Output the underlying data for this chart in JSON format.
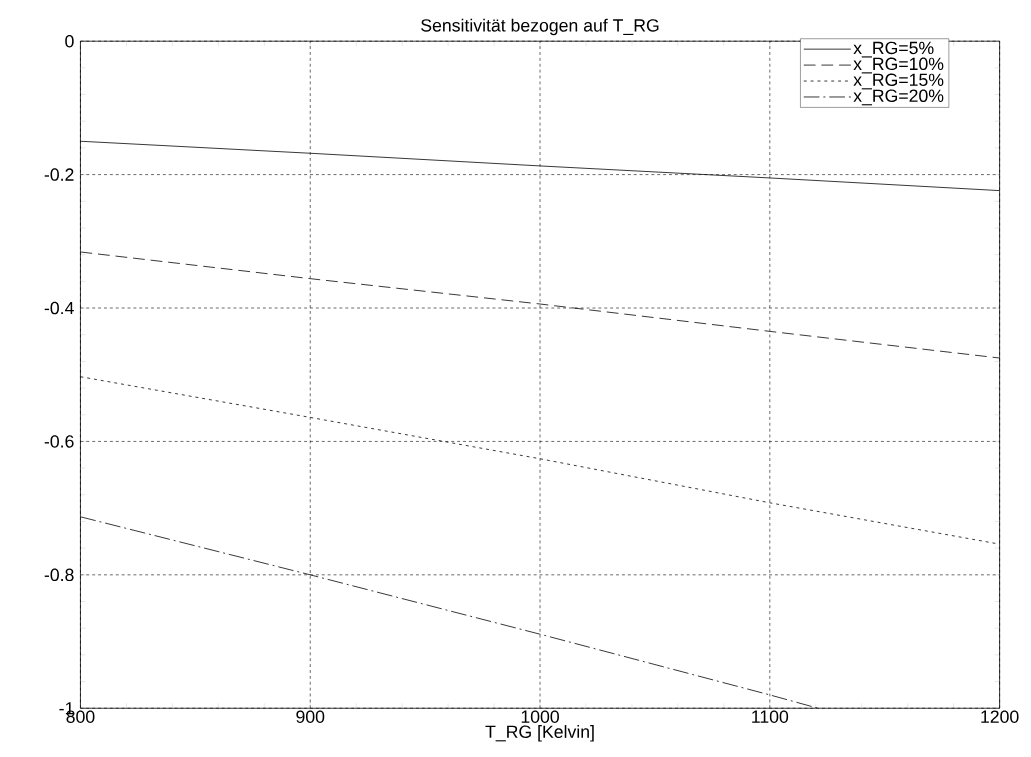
{
  "chart_data": {
    "type": "line",
    "title": "Sensitivität bezogen auf T_RG",
    "xlabel": "T_RG [Kelvin]",
    "xlim": [
      800,
      1200
    ],
    "ylim": [
      -1,
      0
    ],
    "xticks": [
      800,
      900,
      1000,
      1100,
      1200
    ],
    "yticks": [
      -1,
      -0.8,
      -0.6,
      -0.4,
      -0.2,
      0
    ],
    "grid": true,
    "legend": "top right",
    "series": [
      {
        "name": "x_RG=5%",
        "color": "#000000",
        "line_style": "solid",
        "x": [
          800,
          900,
          1000,
          1100,
          1200
        ],
        "values": [
          -0.15,
          -0.168,
          -0.187,
          -0.205,
          -0.224
        ]
      },
      {
        "name": "x_RG=10%",
        "color": "#000000",
        "line_style": "dashed",
        "x": [
          800,
          900,
          1000,
          1100,
          1200
        ],
        "values": [
          -0.316,
          -0.356,
          -0.394,
          -0.435,
          -0.475
        ]
      },
      {
        "name": "x_RG=15%",
        "color": "#000000",
        "line_style": "dotted",
        "x": [
          800,
          900,
          1000,
          1100,
          1200
        ],
        "values": [
          -0.503,
          -0.564,
          -0.626,
          -0.692,
          -0.754
        ]
      },
      {
        "name": "x_RG=20%",
        "color": "#000000",
        "line_style": "dashdot",
        "x": [
          800,
          900,
          1000,
          1100,
          1121
        ],
        "values": [
          -0.713,
          -0.8,
          -0.889,
          -0.98,
          -1.0
        ]
      }
    ]
  }
}
